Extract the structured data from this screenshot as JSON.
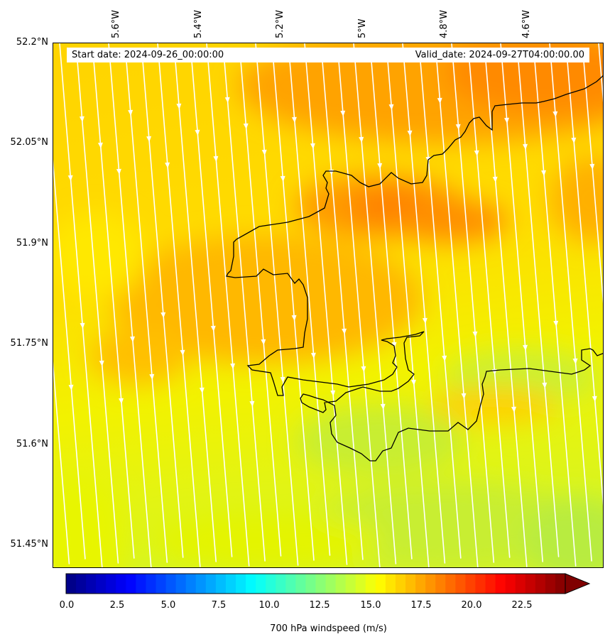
{
  "map": {
    "latitude_labels": [
      "52.2°N",
      "52.05°N",
      "51.9°N",
      "51.75°N",
      "51.6°N",
      "51.45°N"
    ],
    "longitude_labels": [
      "5.6°W",
      "5.4°W",
      "5.2°W",
      "5°W",
      "4.8°W",
      "4.6°W"
    ],
    "start_date": "Start date: 2024-09-26_00:00:00",
    "valid_date": "Valid_date: 2024-09-27T04:00:00.00",
    "streamline_color": "#ffffff",
    "coastline_color": "#000000"
  },
  "colorbar": {
    "label": "700 hPa windspeed (m/s)",
    "tick_labels": [
      "0.0",
      "2.5",
      "5.0",
      "7.5",
      "10.0",
      "12.5",
      "15.0",
      "17.5",
      "20.0",
      "22.5"
    ],
    "min": 0,
    "max": 25,
    "extend": "max",
    "colormap": "jet"
  }
}
